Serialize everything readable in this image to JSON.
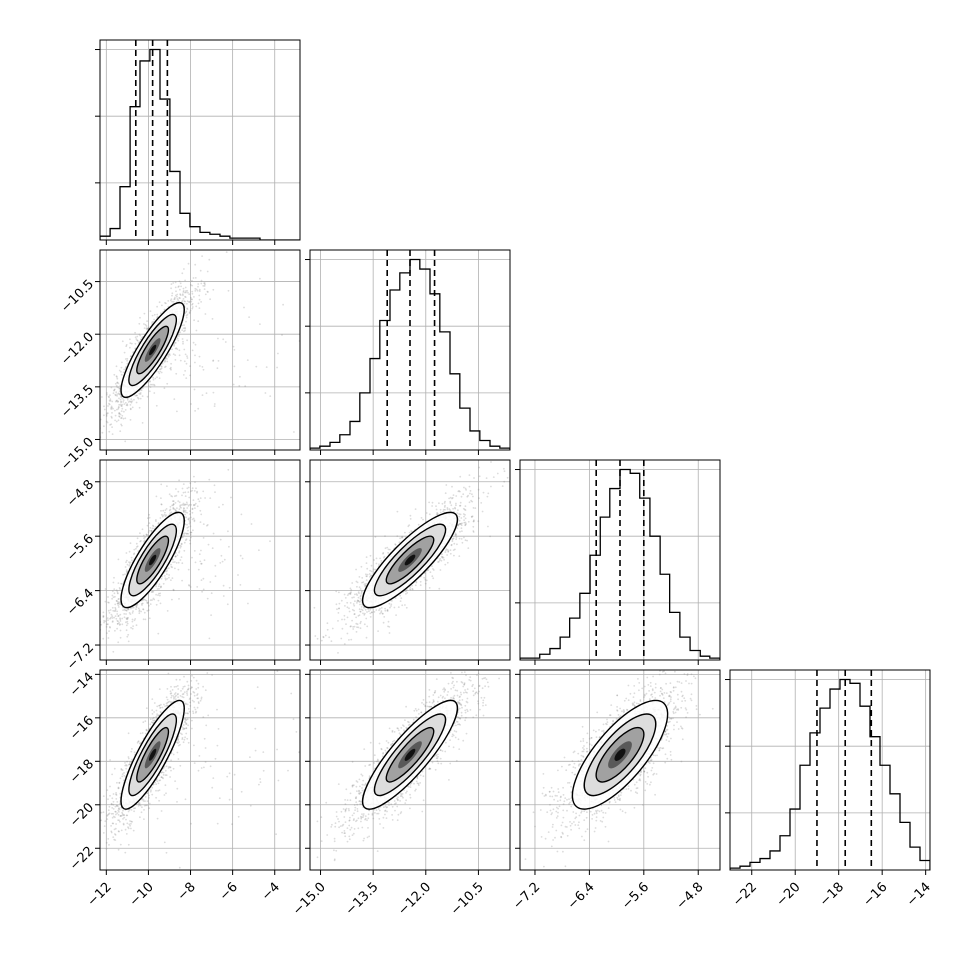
{
  "chart_data": {
    "type": "corner",
    "n_params": 4,
    "params": [
      {
        "range": [
          -12.3,
          -2.8
        ],
        "ticks": [
          "-12",
          "-10",
          "-8",
          "-6",
          "-4"
        ],
        "tick_values": [
          -12,
          -10,
          -8,
          -6,
          -4
        ]
      },
      {
        "range": [
          -15.3,
          -9.6
        ],
        "ticks": [
          "-15.0",
          "-13.5",
          "-12.0",
          "-10.5"
        ],
        "tick_values": [
          -15.0,
          -13.5,
          -12.0,
          -10.5
        ]
      },
      {
        "range": [
          -7.42,
          -4.48
        ],
        "ticks": [
          "-7.2",
          "-6.4",
          "-5.6",
          "-4.8"
        ],
        "tick_values": [
          -7.2,
          -6.4,
          -5.6,
          -4.8
        ]
      },
      {
        "range": [
          -23.0,
          -13.8
        ],
        "ticks": [
          "-22",
          "-20",
          "-18",
          "-16",
          "-14"
        ],
        "tick_values": [
          -22,
          -20,
          -18,
          -16,
          -14
        ]
      }
    ],
    "histograms": [
      {
        "bins": [
          -12.3,
          -11.82,
          -11.35,
          -10.87,
          -10.4,
          -9.93,
          -9.45,
          -8.98,
          -8.5,
          -8.03,
          -7.55,
          -7.08,
          -6.6,
          -6.13,
          -5.65,
          -5.17,
          -4.7,
          -4.22,
          -3.75,
          -3.27,
          -2.8
        ],
        "counts": [
          2,
          6,
          28,
          70,
          94,
          100,
          74,
          36,
          14,
          7,
          4,
          3,
          2,
          1,
          1,
          1,
          0,
          0,
          0,
          0
        ],
        "quantiles": [
          -10.6,
          -9.8,
          -9.1
        ]
      },
      {
        "bins": [
          -15.3,
          -15.02,
          -14.73,
          -14.45,
          -14.16,
          -13.88,
          -13.59,
          -13.31,
          -13.02,
          -12.74,
          -12.45,
          -12.17,
          -11.88,
          -11.6,
          -11.31,
          -11.03,
          -10.74,
          -10.46,
          -10.17,
          -9.89,
          -9.6
        ],
        "counts": [
          1,
          2,
          4,
          8,
          15,
          30,
          48,
          68,
          84,
          93,
          100,
          95,
          82,
          62,
          40,
          22,
          10,
          5,
          2,
          1
        ],
        "quantiles": [
          -13.1,
          -12.45,
          -11.75
        ]
      },
      {
        "bins": [
          -7.42,
          -7.27,
          -7.13,
          -6.98,
          -6.83,
          -6.69,
          -6.54,
          -6.39,
          -6.24,
          -6.1,
          -5.95,
          -5.8,
          -5.66,
          -5.51,
          -5.36,
          -5.22,
          -5.07,
          -4.92,
          -4.77,
          -4.63,
          -4.48
        ],
        "counts": [
          1,
          1,
          3,
          6,
          12,
          22,
          35,
          55,
          75,
          90,
          100,
          98,
          85,
          65,
          45,
          25,
          12,
          5,
          2,
          1
        ],
        "quantiles": [
          -6.3,
          -5.95,
          -5.6
        ]
      },
      {
        "bins": [
          -23.0,
          -22.54,
          -22.08,
          -21.62,
          -21.16,
          -20.7,
          -20.24,
          -19.78,
          -19.32,
          -18.86,
          -18.4,
          -17.94,
          -17.48,
          -17.02,
          -16.56,
          -16.1,
          -15.64,
          -15.18,
          -14.72,
          -14.26,
          -13.8
        ],
        "counts": [
          1,
          2,
          4,
          6,
          10,
          18,
          32,
          55,
          72,
          85,
          95,
          100,
          98,
          86,
          70,
          55,
          40,
          25,
          12,
          5
        ],
        "quantiles": [
          -19.0,
          -17.7,
          -16.5
        ]
      }
    ],
    "correlations": [
      [
        1.0,
        0.85,
        0.82,
        0.85
      ],
      [
        0.85,
        1.0,
        0.85,
        0.86
      ],
      [
        0.82,
        0.85,
        1.0,
        0.75
      ],
      [
        0.85,
        0.86,
        0.75,
        1.0
      ]
    ],
    "grid": true,
    "contour_levels": 3,
    "scatter_color": "#808080",
    "line_color": "#000000",
    "quantile_line_style": "dashed",
    "title": "",
    "xlabel": "",
    "ylabel": ""
  }
}
